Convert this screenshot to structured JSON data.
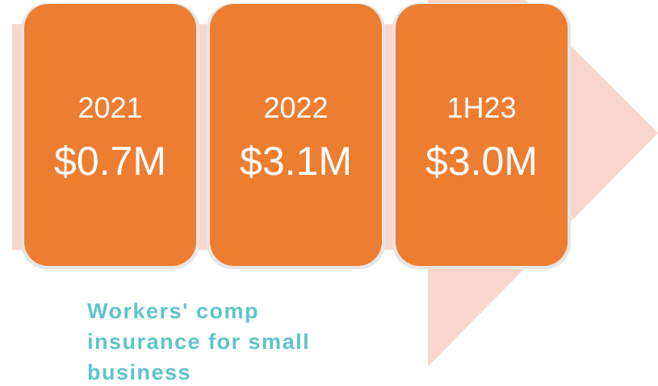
{
  "boxes": [
    {
      "period": "2021",
      "amount": "$0.7M"
    },
    {
      "period": "2022",
      "amount": "$3.1M"
    },
    {
      "period": "1H23",
      "amount": "$3.0M"
    }
  ],
  "caption": [
    "Workers' comp",
    "insurance for small",
    "business"
  ]
}
